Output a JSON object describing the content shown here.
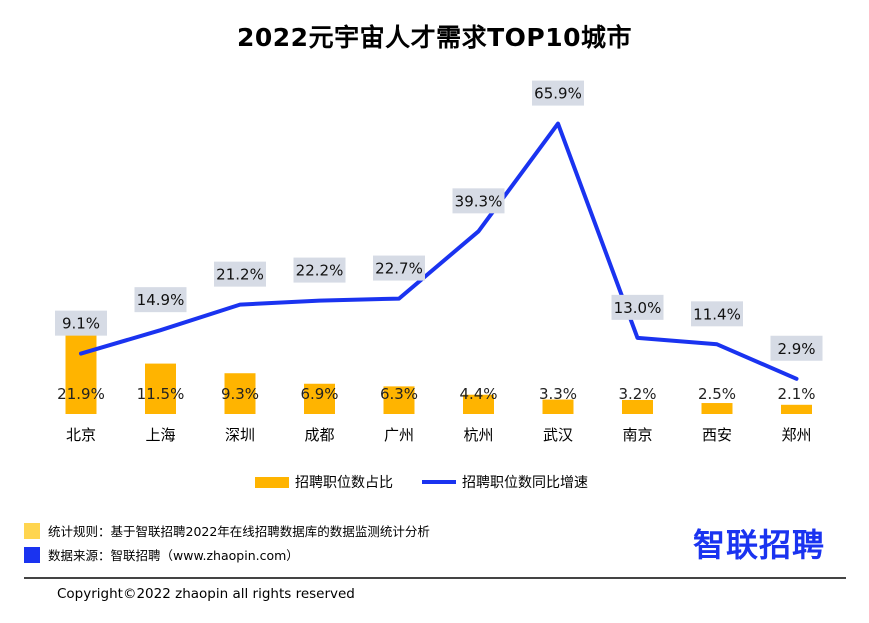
{
  "colors": {
    "bar": "#FFB400",
    "line": "#1A33F0",
    "label_bg": "#D6DBE5",
    "rule_square": "#FFD54F",
    "source_square": "#1A33F0",
    "brand": "#1A33F0"
  },
  "chart_data": {
    "type": "bar",
    "title": "2022元宇宙人才需求TOP10城市",
    "categories": [
      "北京",
      "上海",
      "深圳",
      "成都",
      "广州",
      "杭州",
      "武汉",
      "南京",
      "西安",
      "郑州"
    ],
    "series": [
      {
        "name": "招聘职位数占比",
        "type": "bar",
        "values": [
          21.9,
          11.5,
          9.3,
          6.9,
          6.3,
          4.4,
          3.3,
          3.2,
          2.5,
          2.1
        ],
        "labels": [
          "21.9%",
          "11.5%",
          "9.3%",
          "6.9%",
          "6.3%",
          "4.4%",
          "3.3%",
          "3.2%",
          "2.5%",
          "2.1%"
        ]
      },
      {
        "name": "招聘职位数同比增速",
        "type": "line",
        "values": [
          9.1,
          14.9,
          21.2,
          22.2,
          22.7,
          39.3,
          65.9,
          13.0,
          11.4,
          2.9
        ],
        "labels": [
          "9.1%",
          "14.9%",
          "21.2%",
          "22.2%",
          "22.7%",
          "39.3%",
          "65.9%",
          "13.0%",
          "11.4%",
          "2.9%"
        ]
      }
    ],
    "legend_position": "bottom",
    "grid": false
  },
  "footer": {
    "rule_text": "统计规则：基于智联招聘2022年在线招聘数据库的数据监测统计分析",
    "source_text": "数据来源：智联招聘（www.zhaopin.com）",
    "brand": "智联招聘",
    "copyright": "Copyright©2022 zhaopin all rights reserved"
  }
}
